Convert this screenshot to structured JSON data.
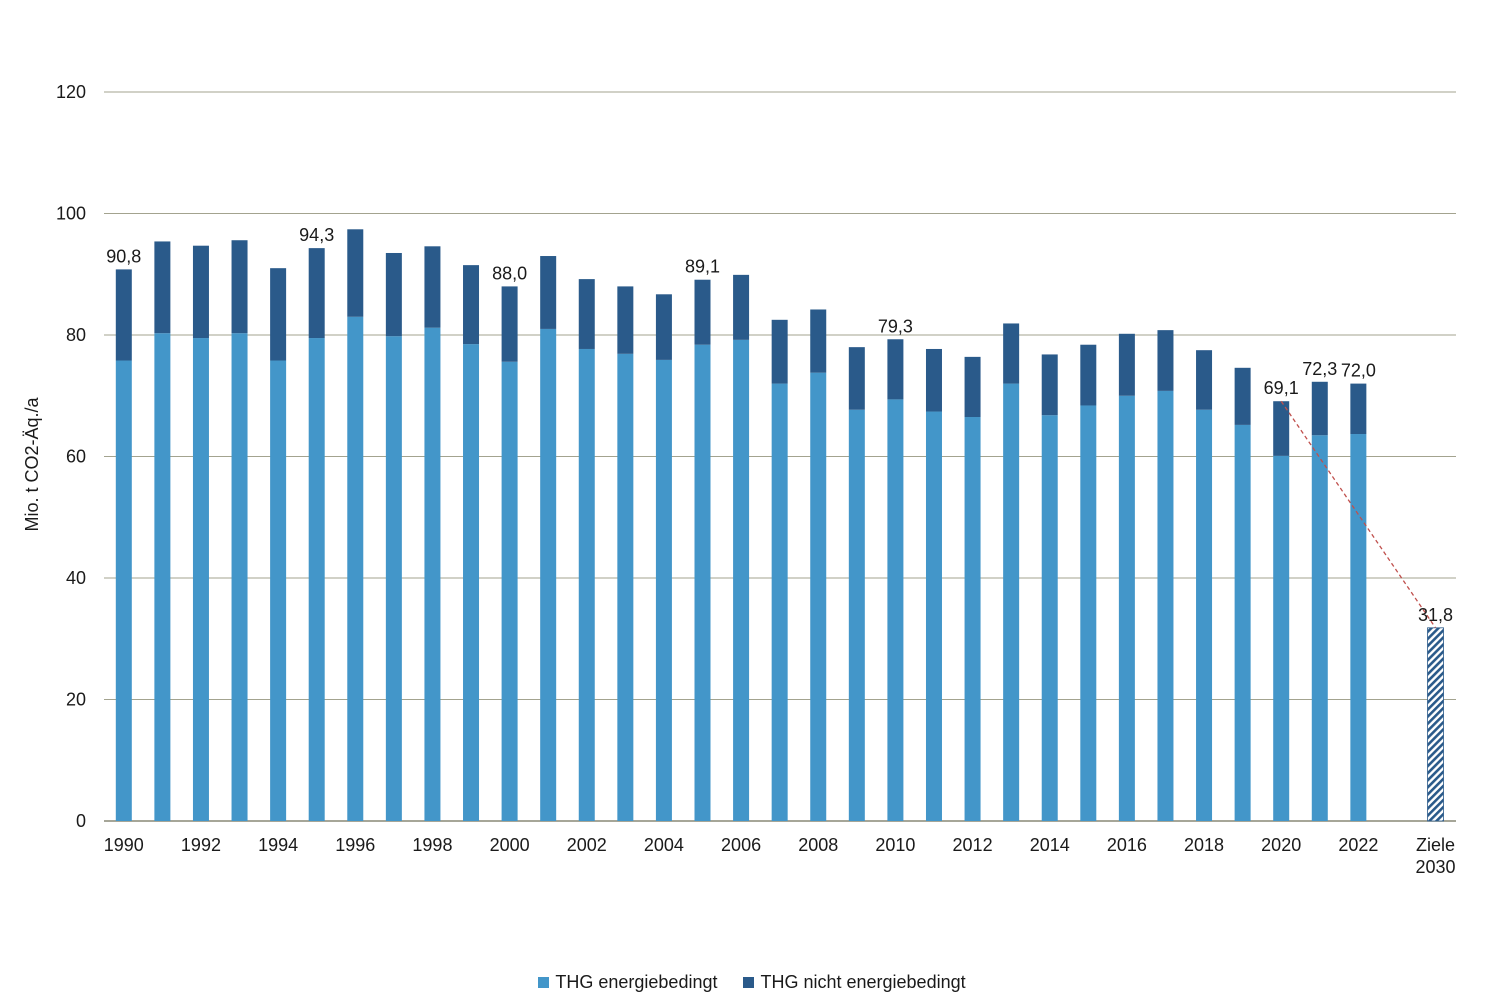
{
  "chart_data": {
    "type": "bar",
    "stacked": true,
    "ylabel": "Mio. t CO2-Äq./a",
    "ylim": [
      0,
      120
    ],
    "yticks": [
      0,
      20,
      40,
      60,
      80,
      100,
      120
    ],
    "grid": true,
    "categories": [
      "1990",
      "1991",
      "1992",
      "1993",
      "1994",
      "1995",
      "1996",
      "1997",
      "1998",
      "1999",
      "2000",
      "2001",
      "2002",
      "2003",
      "2004",
      "2005",
      "2006",
      "2007",
      "2008",
      "2009",
      "2010",
      "2011",
      "2012",
      "2013",
      "2014",
      "2015",
      "2016",
      "2017",
      "2018",
      "2019",
      "2020",
      "2021",
      "2022",
      "Ziele 2030"
    ],
    "xtick_labels": [
      "1990",
      "",
      "1992",
      "",
      "1994",
      "",
      "1996",
      "",
      "1998",
      "",
      "2000",
      "",
      "2002",
      "",
      "2004",
      "",
      "2006",
      "",
      "2008",
      "",
      "2010",
      "",
      "2012",
      "",
      "2014",
      "",
      "2016",
      "",
      "2018",
      "",
      "2020",
      "",
      "2022",
      [
        "Ziele",
        "2030"
      ]
    ],
    "series": [
      {
        "name": "THG energiebedingt",
        "color": "#4396c9",
        "values": [
          75.8,
          80.3,
          79.5,
          80.3,
          75.8,
          79.5,
          83.0,
          79.8,
          81.2,
          78.5,
          75.6,
          81.0,
          77.7,
          76.9,
          75.9,
          78.4,
          79.2,
          72.0,
          73.8,
          67.7,
          69.4,
          67.4,
          66.5,
          72.0,
          66.8,
          68.4,
          70.0,
          70.8,
          67.7,
          65.2,
          60.1,
          63.5,
          63.7,
          null
        ]
      },
      {
        "name": "THG nicht energiebedingt",
        "color": "#2a5a8a",
        "values": [
          15.0,
          15.1,
          15.2,
          15.3,
          15.2,
          14.8,
          14.4,
          13.7,
          13.4,
          13.0,
          12.4,
          12.0,
          11.5,
          11.1,
          10.8,
          10.7,
          10.7,
          10.5,
          10.4,
          10.3,
          9.9,
          10.3,
          9.9,
          9.9,
          10.0,
          10.0,
          10.2,
          10.0,
          9.8,
          9.4,
          9.0,
          8.8,
          8.3,
          null
        ]
      },
      {
        "name": "Ziel 2030",
        "color": "#2a5a8a",
        "pattern": "hatched",
        "values": [
          null,
          null,
          null,
          null,
          null,
          null,
          null,
          null,
          null,
          null,
          null,
          null,
          null,
          null,
          null,
          null,
          null,
          null,
          null,
          null,
          null,
          null,
          null,
          null,
          null,
          null,
          null,
          null,
          null,
          null,
          null,
          null,
          null,
          31.8
        ]
      }
    ],
    "data_labels": [
      {
        "category": "1990",
        "value": 90.8,
        "label": "90,8"
      },
      {
        "category": "1995",
        "value": 94.3,
        "label": "94,3"
      },
      {
        "category": "2000",
        "value": 88.0,
        "label": "88,0"
      },
      {
        "category": "2005",
        "value": 89.1,
        "label": "89,1"
      },
      {
        "category": "2010",
        "value": 79.3,
        "label": "79,3"
      },
      {
        "category": "2020",
        "value": 69.1,
        "label": "69,1"
      },
      {
        "category": "2021",
        "value": 72.3,
        "label": "72,3"
      },
      {
        "category": "2022",
        "value": 72.0,
        "label": "72,0"
      },
      {
        "category": "Ziele 2030",
        "value": 31.8,
        "label": "31,8"
      }
    ],
    "trend_line": {
      "from_category": "2020",
      "from_value": 69.1,
      "to_category": "Ziele 2030",
      "to_value": 31.8,
      "color": "#c0504d",
      "style": "dashed"
    },
    "legend": {
      "position": "bottom-center",
      "items": [
        {
          "label": "THG energiebedingt",
          "color": "#4396c9"
        },
        {
          "label": "THG nicht energiebedingt",
          "color": "#2a5a8a"
        }
      ]
    }
  }
}
